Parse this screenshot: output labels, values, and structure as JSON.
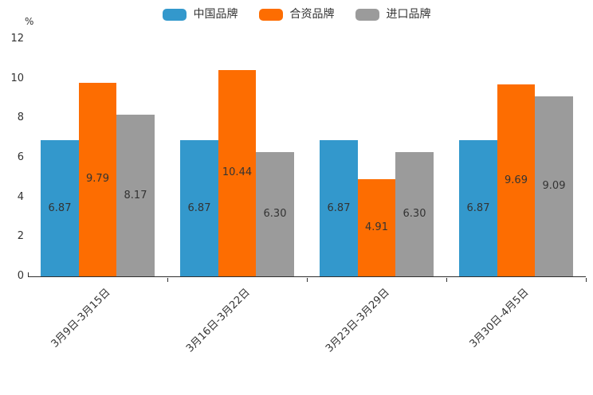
{
  "chart_data": {
    "type": "bar",
    "title": "",
    "unit_label": "%",
    "categories": [
      "3月9日-3月15日",
      "3月16日-3月22日",
      "3月23日-3月29日",
      "3月30日-4月5日"
    ],
    "series": [
      {
        "name": "中国品牌",
        "color": "#3398cc",
        "values": [
          6.87,
          6.87,
          6.87,
          6.87
        ]
      },
      {
        "name": "合资品牌",
        "color": "#fd6d01",
        "values": [
          9.79,
          10.44,
          4.91,
          9.69
        ]
      },
      {
        "name": "进口品牌",
        "color": "#9b9b9b",
        "values": [
          8.17,
          6.3,
          6.3,
          9.09
        ]
      }
    ],
    "value_label_decimals": 2,
    "yticks": [
      0,
      2,
      4,
      6,
      8,
      10,
      12
    ],
    "ylim": [
      0,
      12
    ],
    "grid": false,
    "legend_position": "top-center",
    "xlabel": "",
    "ylabel": "%",
    "text_color": "#333333",
    "axis_color": "#2f2f2f"
  }
}
